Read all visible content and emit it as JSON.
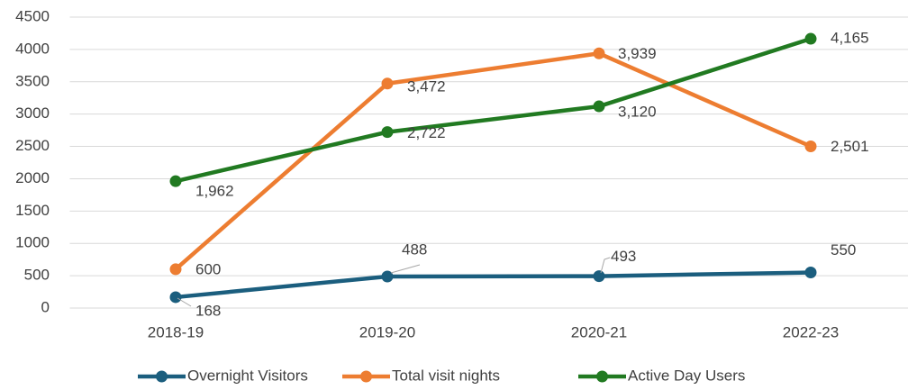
{
  "chart_data": {
    "type": "line",
    "categories": [
      "2018-19",
      "2019-20",
      "2020-21",
      "2022-23"
    ],
    "series": [
      {
        "name": "Overnight Visitors",
        "color": "#1b5e7e",
        "values": [
          168,
          488,
          493,
          550
        ],
        "value_labels": [
          "168",
          "488",
          "493",
          "550"
        ]
      },
      {
        "name": "Total visit nights",
        "color": "#ed7d31",
        "values": [
          600,
          3472,
          3939,
          2501
        ],
        "value_labels": [
          "600",
          "3,472",
          "3,939",
          "2,501"
        ]
      },
      {
        "name": "Active Day Users",
        "color": "#217a21",
        "values": [
          1962,
          2722,
          3120,
          4165
        ],
        "value_labels": [
          "1,962",
          "2,722",
          "3,120",
          "4,165"
        ]
      }
    ],
    "ylim": [
      0,
      4500
    ],
    "yticks": [
      0,
      500,
      1000,
      1500,
      2000,
      2500,
      3000,
      3500,
      4000,
      4500
    ],
    "grid": true,
    "legend": "bottom"
  }
}
